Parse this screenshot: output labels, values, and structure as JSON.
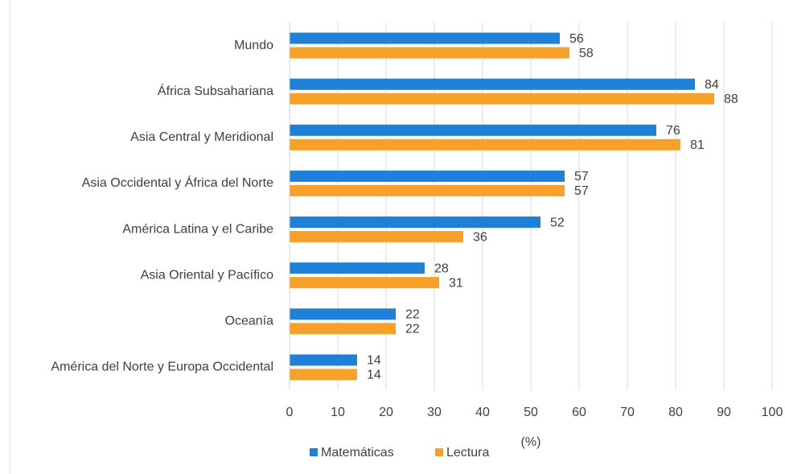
{
  "chart_data": {
    "type": "hbar",
    "categories": [
      "Mundo",
      "África Subsahariana",
      "Asia Central y Meridional",
      "Asia Occidental y África del Norte",
      "América Latina y el Caribe",
      "Asia Oriental y Pacífico",
      "Oceanía",
      "América del Norte y Europa Occidental"
    ],
    "series": [
      {
        "name": "Matemáticas",
        "color": "#1f80d8",
        "values": [
          56,
          84,
          76,
          57,
          52,
          28,
          22,
          14
        ]
      },
      {
        "name": "Lectura",
        "color": "#f7a12a",
        "values": [
          58,
          88,
          81,
          57,
          36,
          31,
          22,
          14
        ]
      }
    ],
    "xlabel": "(%)",
    "xlim": [
      0,
      100
    ],
    "xticks": [
      0,
      10,
      20,
      30,
      40,
      50,
      60,
      70,
      80,
      90,
      100
    ],
    "grid": true,
    "legend": "bottom"
  }
}
